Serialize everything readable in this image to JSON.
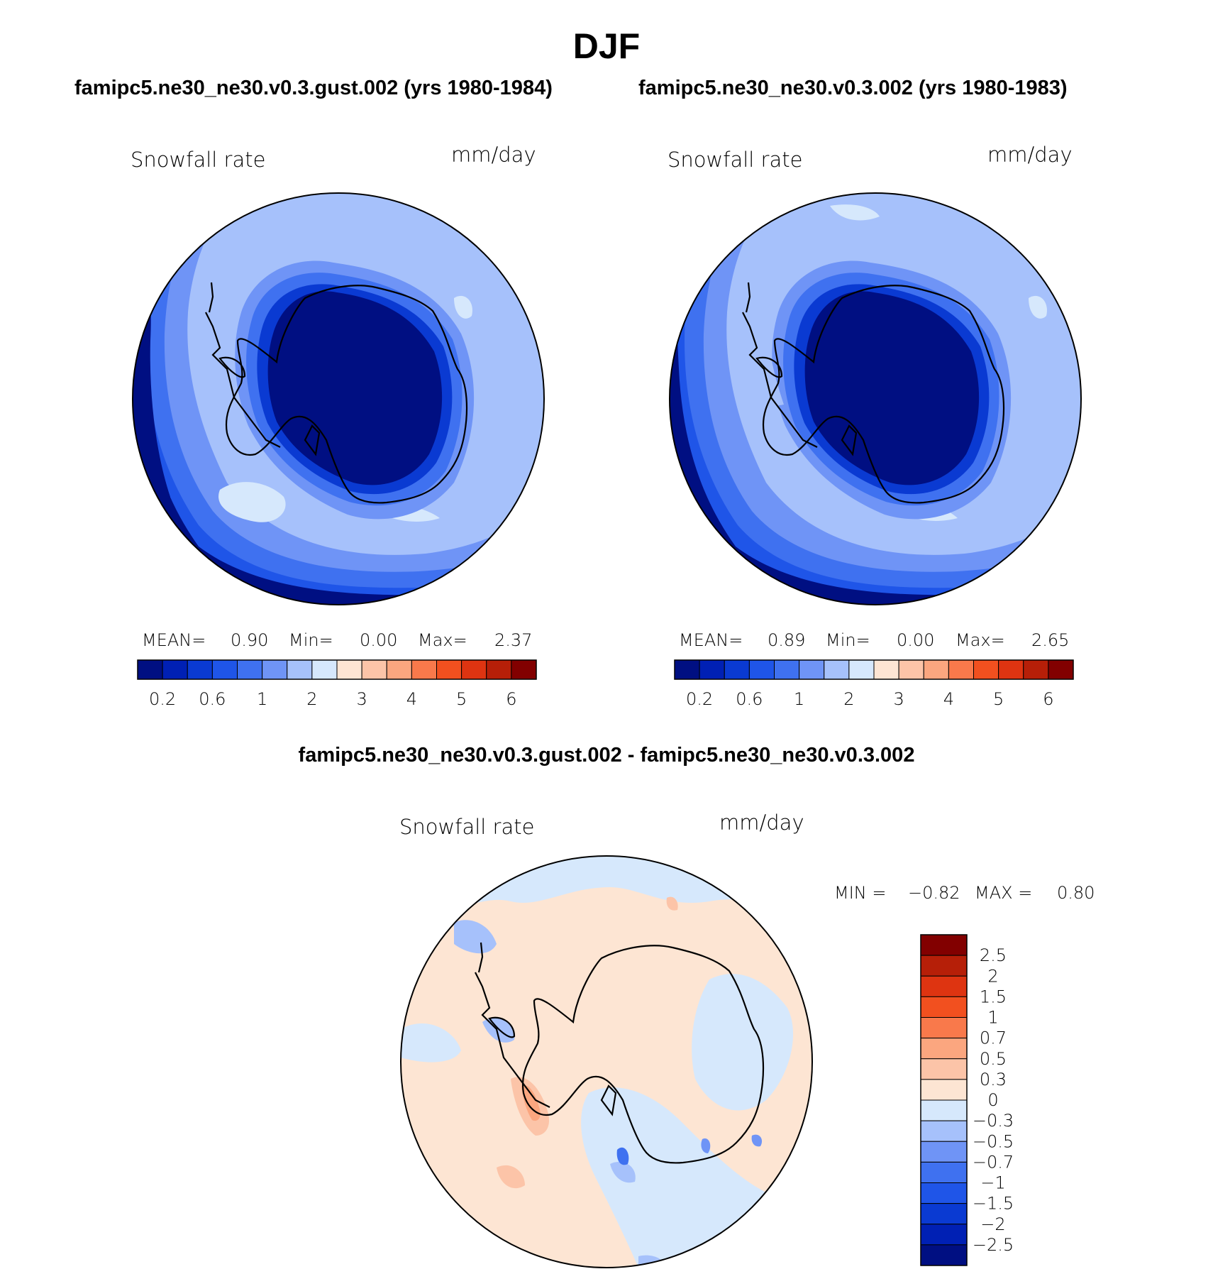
{
  "season": "DJF",
  "panels": [
    {
      "case_title": "famipc5.ne30_ne30.v0.3.gust.002 (yrs 1980-1984)",
      "variable": "Snowfall rate",
      "units": "mm/day",
      "stats": {
        "mean_label": "MEAN=",
        "mean": "0.90",
        "min_label": "Min=",
        "min": "0.00",
        "max_label": "Max=",
        "max": "2.37"
      }
    },
    {
      "case_title": "famipc5.ne30_ne30.v0.3.002 (yrs 1980-1983)",
      "variable": "Snowfall rate",
      "units": "mm/day",
      "stats": {
        "mean_label": "MEAN=",
        "mean": "0.89",
        "min_label": "Min=",
        "min": "0.00",
        "max_label": "Max=",
        "max": "2.65"
      }
    }
  ],
  "difference": {
    "title": "famipc5.ne30_ne30.v0.3.gust.002 - famipc5.ne30_ne30.v0.3.002",
    "variable": "Snowfall rate",
    "units": "mm/day",
    "min_label": "MIN =",
    "min": "−0.82",
    "max_label": "MAX =",
    "max": "0.80"
  },
  "colorbar_main": {
    "colors": [
      "#000f82",
      "#0020b4",
      "#0a3ad2",
      "#1f55e8",
      "#3f71f0",
      "#6f94f6",
      "#a6c1fb",
      "#d6e8fc",
      "#fde5d3",
      "#fcc4a8",
      "#fba67f",
      "#f9794b",
      "#f2501f",
      "#de3411",
      "#b61f08",
      "#820000"
    ],
    "tick_labels": [
      "0.2",
      "0.6",
      "1",
      "2",
      "3",
      "4",
      "5",
      "6"
    ]
  },
  "colorbar_diff": {
    "colors": [
      "#000f82",
      "#0020b4",
      "#0a3ad2",
      "#1f55e8",
      "#3f71f0",
      "#6f94f6",
      "#a6c1fb",
      "#d6e8fc",
      "#fde5d3",
      "#fcc4a8",
      "#fba67f",
      "#f9794b",
      "#f2501f",
      "#de3411",
      "#b61f08",
      "#820000"
    ],
    "tick_labels": [
      "2.5",
      "2",
      "1.5",
      "1",
      "0.7",
      "0.5",
      "0.3",
      "0",
      "−0.3",
      "−0.5",
      "−0.7",
      "−1",
      "−1.5",
      "−2",
      "−2.5"
    ]
  }
}
